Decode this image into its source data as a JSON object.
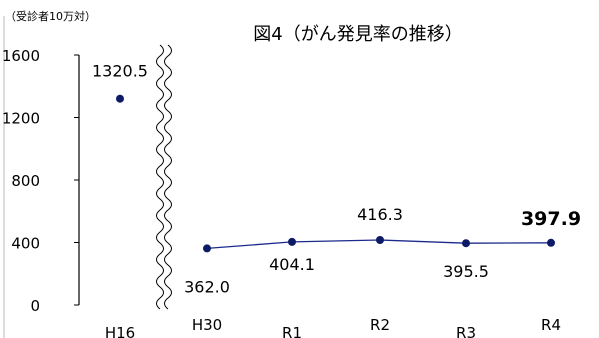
{
  "chart_data": {
    "type": "line",
    "title": "図4（がん発見率の推移）",
    "unit_label": "（受診者10万対）",
    "xlabel": "",
    "ylabel": "",
    "ylim": [
      0,
      1600
    ],
    "yticks": [
      0,
      400,
      800,
      1200,
      1600
    ],
    "grid": false,
    "legend": "none",
    "axis_break_between": [
      "H16",
      "H30"
    ],
    "categories": [
      "H16",
      "H30",
      "R1",
      "R2",
      "R3",
      "R4"
    ],
    "series": [
      {
        "values": [
          1320.5,
          362.0,
          404.1,
          416.3,
          395.5,
          397.9
        ],
        "value_labels": [
          "1320.5",
          "362.0",
          "404.1",
          "416.3",
          "395.5",
          "397.9"
        ],
        "connected_from_index": 1,
        "emphasized_index": 5
      }
    ],
    "colors": {
      "marker": "#0d1a66",
      "line": "#1c2a8c",
      "axis": "#000000",
      "frame": "#b8b8b8"
    }
  }
}
